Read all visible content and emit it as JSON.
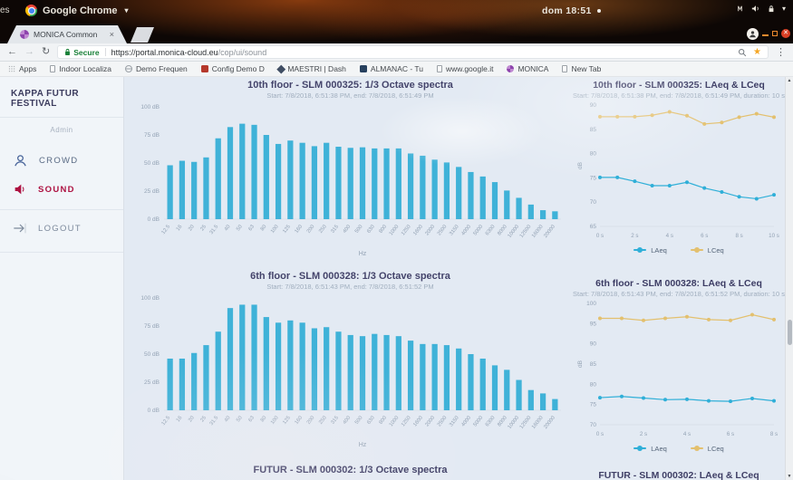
{
  "system_bar": {
    "edge_text": "es",
    "app_menu": "Google Chrome",
    "menu_caret": "▾",
    "clock": "dom 18:51",
    "icons": [
      "input-indicator-icon",
      "volume-icon",
      "lock-icon",
      "caret-down-icon"
    ]
  },
  "browser": {
    "tab_title": "MONICA Common",
    "tab_close": "×",
    "nav": {
      "back": "←",
      "forward": "→",
      "reload": "↻"
    },
    "omnibox": {
      "secure_label": "Secure",
      "url_host": "https://portal.monica-cloud.eu",
      "url_path": "/cop/ui/sound",
      "star": "★",
      "menu_dots": "⋮"
    },
    "bookmarks": [
      {
        "label": "Apps",
        "icon": "apps-grid"
      },
      {
        "label": "Indoor Localiza",
        "icon": "page"
      },
      {
        "label": "Demo Frequen",
        "icon": "globe"
      },
      {
        "label": "Config Demo D",
        "icon": "red-app"
      },
      {
        "label": "MAESTRI | Dash",
        "icon": "diamond"
      },
      {
        "label": "ALMANAC - Tu",
        "icon": "blue-app"
      },
      {
        "label": "www.google.it",
        "icon": "page"
      },
      {
        "label": "MONICA",
        "icon": "monica-logo"
      },
      {
        "label": "New Tab",
        "icon": "page"
      }
    ]
  },
  "sidebar": {
    "title": "KAPPA FUTUR FESTIVAL",
    "role": "Admin",
    "items": [
      {
        "label": "CROWD",
        "icon": "person-icon",
        "active": false
      },
      {
        "label": "SOUND",
        "icon": "speaker-icon",
        "active": true
      },
      {
        "label": "LOGOUT",
        "icon": "arrow-right-icon",
        "active": false
      }
    ]
  },
  "colors": {
    "bar": "#3fb2d8",
    "laeq": "#2fafd8",
    "lceq": "#e3c06e",
    "accent_red": "#ad1141",
    "axis_text": "#93a2b4"
  },
  "chart_data": [
    {
      "type": "bar",
      "title": "10th floor - SLM 000325: 1/3 Octave spectra",
      "subtitle": "Start: 7/8/2018, 6:51:38 PM, end: 7/8/2018, 6:51:49 PM",
      "xlabel": "Hz",
      "ylabel": "dB",
      "ylim": [
        0,
        100
      ],
      "yticks": [
        0,
        25,
        50,
        75,
        100
      ],
      "ytick_suffix": " dB",
      "grid": false,
      "categories": [
        "12.5",
        "16",
        "20",
        "25",
        "31.5",
        "40",
        "50",
        "63",
        "80",
        "100",
        "125",
        "160",
        "200",
        "250",
        "315",
        "400",
        "500",
        "630",
        "800",
        "1000",
        "1250",
        "1600",
        "2000",
        "2500",
        "3150",
        "4000",
        "5000",
        "6300",
        "8000",
        "10000",
        "12500",
        "16000",
        "20000"
      ],
      "values": [
        48,
        52,
        51,
        55,
        72,
        82,
        85,
        84,
        75,
        67,
        70,
        68,
        65,
        68,
        64.5,
        63.5,
        64,
        63,
        63,
        63,
        58.5,
        56.5,
        53,
        50.5,
        46.5,
        42,
        38,
        33,
        25.5,
        19,
        13,
        8,
        7
      ]
    },
    {
      "type": "line",
      "title": "10th floor - SLM 000325: LAeq & LCeq",
      "subtitle": "Start: 7/8/2018, 6:51:38 PM, end: 7/8/2018, 6:51:49 PM, duration: 10 s",
      "ylabel": "dB",
      "ylim": [
        65,
        90
      ],
      "yticks": [
        65,
        70,
        75,
        80,
        85,
        90
      ],
      "x": [
        0,
        1,
        2,
        3,
        4,
        5,
        6,
        7,
        8,
        9,
        10
      ],
      "xticks": [
        0,
        2,
        4,
        6,
        8,
        10
      ],
      "xtick_suffix": " s",
      "grid": false,
      "legend_position": "bottom",
      "series": [
        {
          "name": "LAeq",
          "color": "#2fafd8",
          "values": [
            75.1,
            75.1,
            74.3,
            73.4,
            73.4,
            74.1,
            72.9,
            72.1,
            71.1,
            70.7,
            71.5
          ]
        },
        {
          "name": "LCeq",
          "color": "#e3c06e",
          "values": [
            87.6,
            87.6,
            87.6,
            87.9,
            88.6,
            87.8,
            86.1,
            86.4,
            87.5,
            88.2,
            87.5
          ]
        }
      ]
    },
    {
      "type": "bar",
      "title": "6th floor - SLM 000328: 1/3 Octave spectra",
      "subtitle": "Start: 7/8/2018, 6:51:43 PM, end: 7/8/2018, 6:51:52 PM",
      "xlabel": "Hz",
      "ylabel": "dB",
      "ylim": [
        0,
        100
      ],
      "yticks": [
        0,
        25,
        50,
        75,
        100
      ],
      "ytick_suffix": " dB",
      "grid": false,
      "categories": [
        "12.5",
        "16",
        "20",
        "25",
        "31.5",
        "40",
        "50",
        "63",
        "80",
        "100",
        "125",
        "160",
        "200",
        "250",
        "315",
        "400",
        "500",
        "630",
        "800",
        "1000",
        "1250",
        "1600",
        "2000",
        "2500",
        "3150",
        "4000",
        "5000",
        "6300",
        "8000",
        "10000",
        "12500",
        "16000",
        "20000"
      ],
      "values": [
        46,
        46,
        51,
        58,
        70,
        91,
        94,
        94,
        83,
        78,
        80,
        78,
        73,
        74,
        70,
        67,
        66,
        68,
        67,
        66,
        62,
        59,
        59,
        58,
        55,
        50,
        46,
        40,
        36,
        27,
        18,
        15,
        10
      ]
    },
    {
      "type": "line",
      "title": "6th floor - SLM 000328: LAeq & LCeq",
      "subtitle": "Start: 7/8/2018, 6:51:43 PM, end: 7/8/2018, 6:51:52 PM, duration: 10 s",
      "ylabel": "dB",
      "ylim": [
        70,
        100
      ],
      "yticks": [
        70,
        75,
        80,
        85,
        90,
        95,
        100
      ],
      "x": [
        0,
        1,
        2,
        3,
        4,
        5,
        6,
        7,
        8
      ],
      "xticks": [
        0,
        2,
        4,
        6,
        8
      ],
      "xtick_suffix": " s",
      "grid": false,
      "legend_position": "bottom",
      "series": [
        {
          "name": "LAeq",
          "color": "#2fafd8",
          "values": [
            76.7,
            77.0,
            76.6,
            76.2,
            76.3,
            75.9,
            75.8,
            76.5,
            75.9
          ]
        },
        {
          "name": "LCeq",
          "color": "#e3c06e",
          "values": [
            96.3,
            96.3,
            95.8,
            96.3,
            96.7,
            96.0,
            95.8,
            97.2,
            96.0
          ]
        }
      ]
    },
    {
      "type": "bar",
      "title": "FUTUR - SLM 000302: 1/3 Octave spectra"
    },
    {
      "type": "line",
      "title": "FUTUR - SLM 000302: LAeq & LCeq"
    }
  ]
}
